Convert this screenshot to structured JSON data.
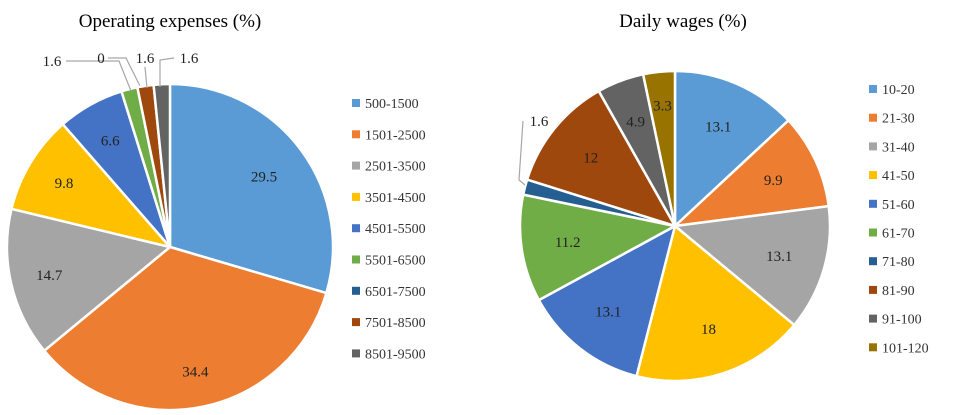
{
  "chart_data": [
    {
      "type": "pie",
      "title": "Operating expenses (%)",
      "categories": [
        "500-1500",
        "1501-2500",
        "2501-3500",
        "3501-4500",
        "4501-5500",
        "5501-6500",
        "6501-7500",
        "7501-8500",
        "8501-9500"
      ],
      "values": [
        29.5,
        34.4,
        14.7,
        9.8,
        6.6,
        1.6,
        0,
        1.6,
        1.6
      ],
      "data_labels": [
        "29.5",
        "34.4",
        "14.7",
        "9.8",
        "6.6",
        "1.6",
        "0",
        "1.6",
        "1.6"
      ],
      "colors": [
        "#5B9BD5",
        "#ED7D31",
        "#A5A5A5",
        "#FFC000",
        "#4472C4",
        "#70AD47",
        "#255E91",
        "#9E480E",
        "#636363"
      ],
      "legend_position": "right"
    },
    {
      "type": "pie",
      "title": "Daily wages (%)",
      "categories": [
        "10-20",
        "21-30",
        "31-40",
        "41-50",
        "51-60",
        "61-70",
        "71-80",
        "81-90",
        "91-100",
        "101-120"
      ],
      "values": [
        13.1,
        9.9,
        13.1,
        18,
        13.1,
        11.2,
        1.6,
        12,
        4.9,
        3.3
      ],
      "data_labels": [
        "13.1",
        "9.9",
        "13.1",
        "18",
        "13.1",
        "11.2",
        "1.6",
        "12",
        "4.9",
        "3.3"
      ],
      "colors": [
        "#5B9BD5",
        "#ED7D31",
        "#A5A5A5",
        "#FFC000",
        "#4472C4",
        "#70AD47",
        "#255E91",
        "#9E480E",
        "#636363",
        "#997300"
      ],
      "legend_position": "right"
    }
  ]
}
